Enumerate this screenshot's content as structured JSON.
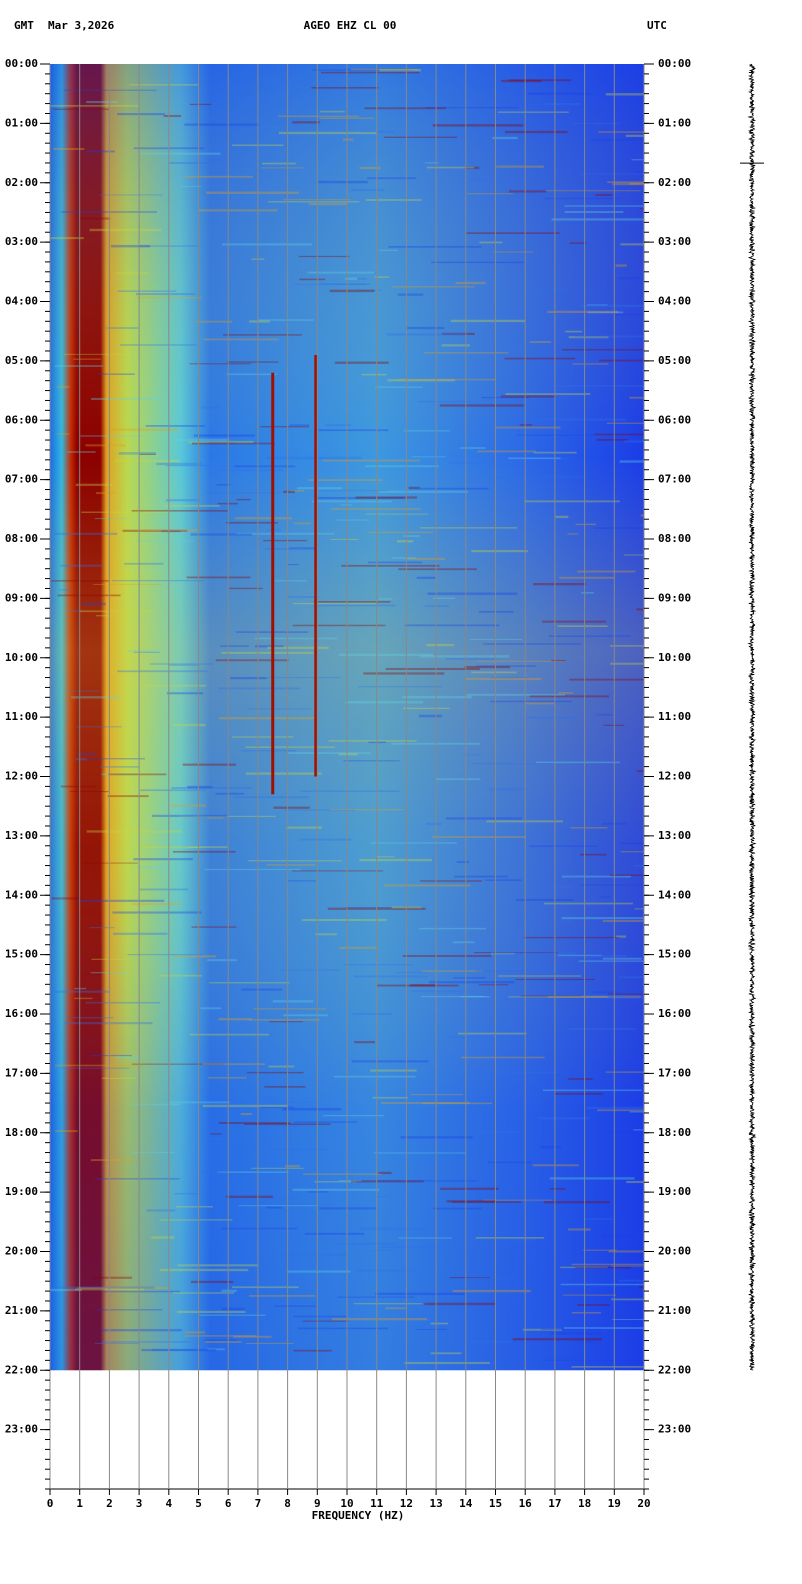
{
  "chart_data": {
    "type": "spectrogram",
    "header": {
      "left": "GMT",
      "date": "Mar 3,2026",
      "station": "AGEO EHZ CL 00",
      "right": "UTC"
    },
    "xlabel": "FREQUENCY (HZ)",
    "xlim": [
      0,
      20
    ],
    "xticks": [
      0,
      1,
      2,
      3,
      4,
      5,
      6,
      7,
      8,
      9,
      10,
      11,
      12,
      13,
      14,
      15,
      16,
      17,
      18,
      19,
      20
    ],
    "ylim": [
      0,
      24
    ],
    "data_ylim": [
      0,
      22
    ],
    "yticks": [
      {
        "value": 0,
        "label": "00:00"
      },
      {
        "value": 1,
        "label": "01:00"
      },
      {
        "value": 2,
        "label": "02:00"
      },
      {
        "value": 3,
        "label": "03:00"
      },
      {
        "value": 4,
        "label": "04:00"
      },
      {
        "value": 5,
        "label": "05:00"
      },
      {
        "value": 6,
        "label": "06:00"
      },
      {
        "value": 7,
        "label": "07:00"
      },
      {
        "value": 8,
        "label": "08:00"
      },
      {
        "value": 9,
        "label": "09:00"
      },
      {
        "value": 10,
        "label": "10:00"
      },
      {
        "value": 11,
        "label": "11:00"
      },
      {
        "value": 12,
        "label": "12:00"
      },
      {
        "value": 13,
        "label": "13:00"
      },
      {
        "value": 14,
        "label": "14:00"
      },
      {
        "value": 15,
        "label": "15:00"
      },
      {
        "value": 16,
        "label": "16:00"
      },
      {
        "value": 17,
        "label": "17:00"
      },
      {
        "value": 18,
        "label": "18:00"
      },
      {
        "value": 19,
        "label": "19:00"
      },
      {
        "value": 20,
        "label": "20:00"
      },
      {
        "value": 21,
        "label": "21:00"
      },
      {
        "value": 22,
        "label": "22:00"
      },
      {
        "value": 23,
        "label": "23:00"
      }
    ],
    "grid": true
  }
}
